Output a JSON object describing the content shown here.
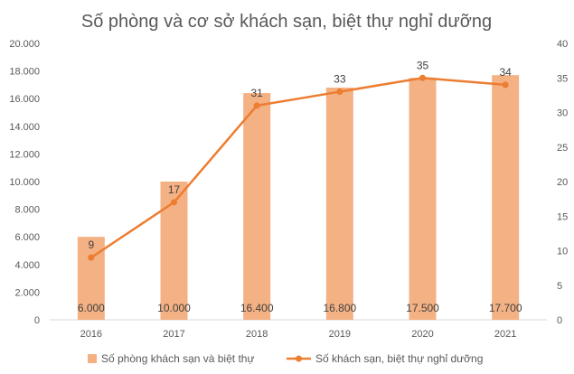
{
  "chart_data": {
    "type": "bar+line",
    "title": "Số phòng và cơ sở khách sạn, biệt thự nghỉ dưỡng",
    "categories": [
      "2016",
      "2017",
      "2018",
      "2019",
      "2020",
      "2021"
    ],
    "series": [
      {
        "name": "Số phòng khách sạn và biệt thự",
        "type": "bar",
        "axis": "left",
        "values": [
          6000,
          10000,
          16400,
          16800,
          17500,
          17700
        ],
        "labels": [
          "6.000",
          "10.000",
          "16.400",
          "16.800",
          "17.500",
          "17.700"
        ],
        "color": "#F4B183"
      },
      {
        "name": "Số khách sạn, biệt thự nghỉ dưỡng",
        "type": "line",
        "axis": "right",
        "values": [
          9,
          17,
          31,
          33,
          35,
          34
        ],
        "labels": [
          "9",
          "17",
          "31",
          "33",
          "35",
          "34"
        ],
        "color": "#ED7D31"
      }
    ],
    "y_left": {
      "range": [
        0,
        20000
      ],
      "ticks": [
        0,
        2000,
        4000,
        6000,
        8000,
        10000,
        12000,
        14000,
        16000,
        18000,
        20000
      ],
      "tick_labels": [
        "0",
        "2.000",
        "4.000",
        "6.000",
        "8.000",
        "10.000",
        "12.000",
        "14.000",
        "16.000",
        "18.000",
        "20.000"
      ]
    },
    "y_right": {
      "range": [
        0,
        40
      ],
      "ticks": [
        0,
        5,
        10,
        15,
        20,
        25,
        30,
        35,
        40
      ],
      "tick_labels": [
        "0",
        "5",
        "10",
        "15",
        "20",
        "25",
        "30",
        "35",
        "40"
      ]
    },
    "grid": false,
    "legend_position": "bottom"
  }
}
